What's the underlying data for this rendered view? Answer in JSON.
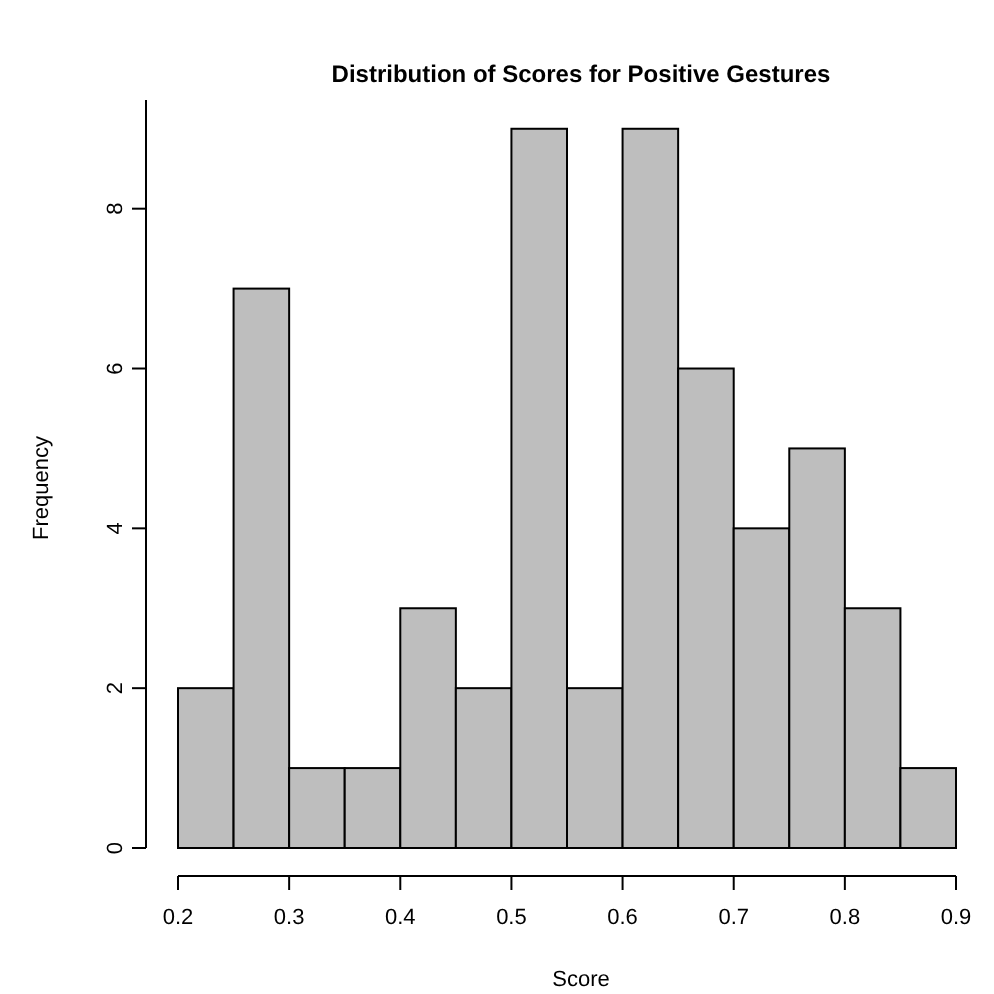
{
  "chart_data": {
    "type": "histogram",
    "title": "Distribution of Scores for Positive Gestures",
    "xlabel": "Score",
    "ylabel": "Frequency",
    "bins": [
      0.2,
      0.25,
      0.3,
      0.35,
      0.4,
      0.45,
      0.5,
      0.55,
      0.6,
      0.65,
      0.7,
      0.75,
      0.8,
      0.85,
      0.9
    ],
    "values": [
      2,
      7,
      1,
      1,
      3,
      2,
      9,
      2,
      9,
      6,
      4,
      5,
      3,
      1
    ],
    "color": "#bebebe",
    "xlim": [
      0.2,
      0.9
    ],
    "ylim": [
      0,
      9.36
    ],
    "xticks": [
      0.2,
      0.3,
      0.4,
      0.5,
      0.6,
      0.7,
      0.8,
      0.9
    ],
    "yticks": [
      0,
      2,
      4,
      6,
      8
    ],
    "grid": false
  }
}
